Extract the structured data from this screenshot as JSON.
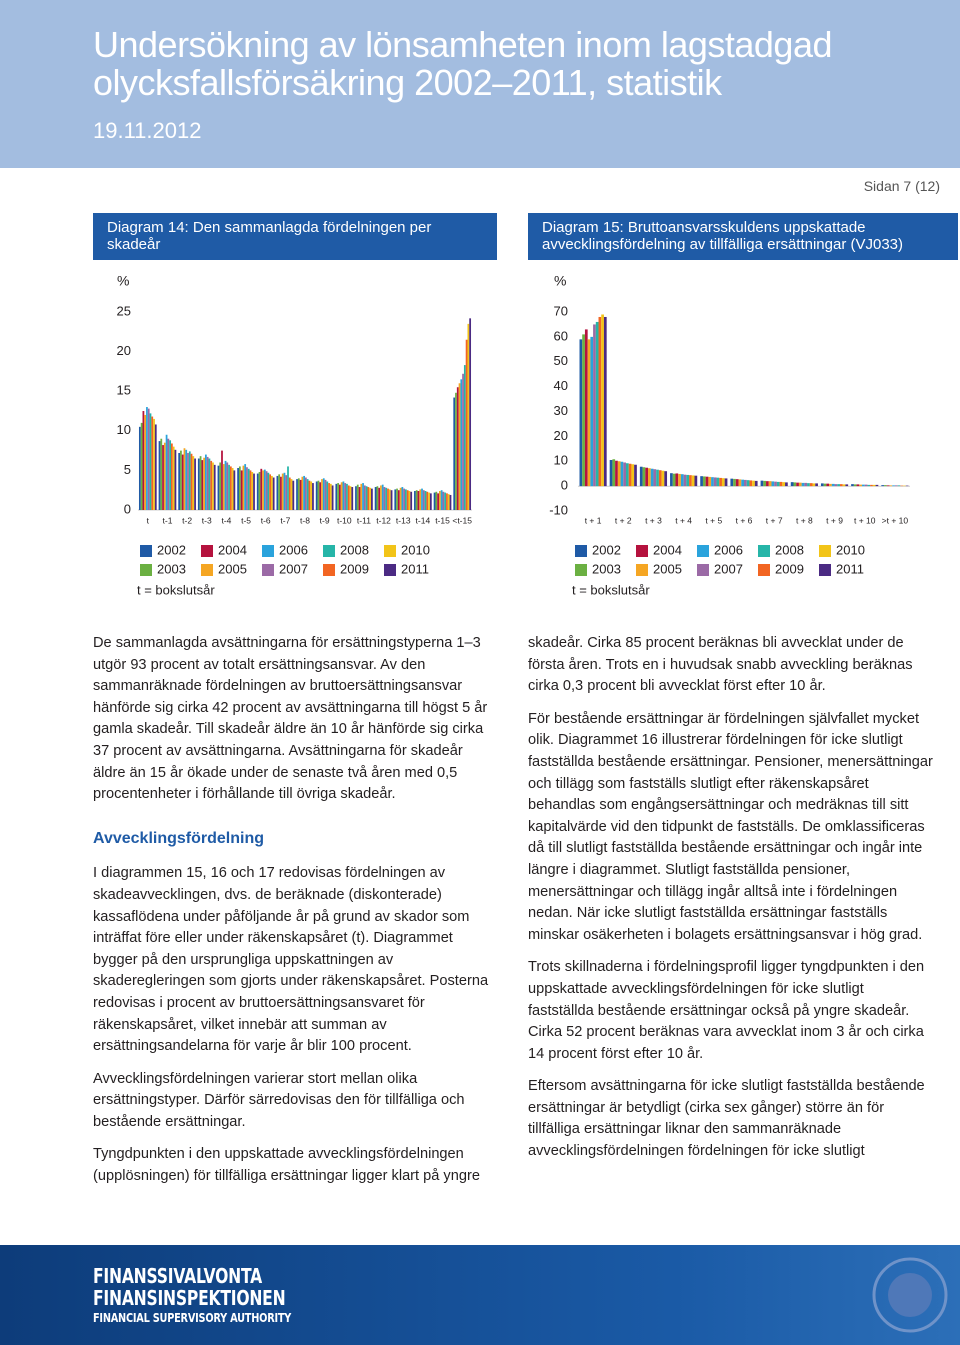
{
  "header": {
    "title": "Undersökning av lönsamheten inom lagstadgad olycksfallsförsäkring 2002–2011, statistik",
    "date": "19.11.2012",
    "page": "Sidan 7 (12)"
  },
  "chart_data": [
    {
      "type": "bar",
      "title": "Diagram 14: Den sammanlagda fördelningen per skadeår",
      "ylabel": "%",
      "note": "t = bokslutsår",
      "categories": [
        "t",
        "t-1",
        "t-2",
        "t-3",
        "t-4",
        "t-5",
        "t-6",
        "t-7",
        "t-8",
        "t-9",
        "t-10",
        "t-11",
        "t-12",
        "t-13",
        "t-14",
        "t-15",
        "<t-15"
      ],
      "ylim": [
        0,
        25
      ],
      "yticks": [
        0,
        5,
        10,
        15,
        20,
        25
      ],
      "series": [
        {
          "name": "2002",
          "color": "#1f5aa6",
          "values": [
            10.5,
            8.7,
            7.2,
            6.5,
            5.6,
            5.3,
            4.6,
            4.3,
            3.9,
            3.6,
            3.3,
            3.0,
            2.9,
            2.6,
            2.4,
            2.2,
            14.2
          ]
        },
        {
          "name": "2003",
          "color": "#6bb042",
          "values": [
            11.0,
            9.0,
            7.5,
            6.8,
            6.0,
            5.5,
            4.8,
            4.5,
            4.0,
            3.7,
            3.4,
            3.2,
            3.0,
            2.7,
            2.5,
            2.3,
            14.8
          ]
        },
        {
          "name": "2004",
          "color": "#b5123e",
          "values": [
            12.5,
            8.2,
            7.0,
            6.3,
            7.5,
            5.0,
            5.2,
            4.2,
            3.8,
            3.5,
            3.2,
            2.9,
            2.8,
            2.5,
            2.4,
            2.1,
            15.5
          ]
        },
        {
          "name": "2005",
          "color": "#f5a623",
          "values": [
            12.0,
            8.5,
            7.8,
            6.6,
            5.8,
            5.6,
            5.0,
            4.6,
            4.2,
            3.9,
            3.5,
            3.3,
            3.1,
            2.8,
            2.6,
            2.4,
            16.0
          ]
        },
        {
          "name": "2006",
          "color": "#2aa3dc",
          "values": [
            13.0,
            9.5,
            7.6,
            7.0,
            6.2,
            5.8,
            5.1,
            4.7,
            4.3,
            4.0,
            3.6,
            3.4,
            3.2,
            2.9,
            2.7,
            2.5,
            16.5
          ]
        },
        {
          "name": "2007",
          "color": "#9b6aa6",
          "values": [
            12.8,
            9.0,
            7.2,
            6.7,
            6.0,
            5.4,
            4.9,
            4.4,
            4.1,
            3.8,
            3.4,
            3.1,
            2.9,
            2.7,
            2.5,
            2.3,
            17.2
          ]
        },
        {
          "name": "2008",
          "color": "#26b5a8",
          "values": [
            12.2,
            8.8,
            7.4,
            6.5,
            5.7,
            5.2,
            4.7,
            5.5,
            3.9,
            3.6,
            3.3,
            3.0,
            2.8,
            2.6,
            2.4,
            2.2,
            18.3
          ]
        },
        {
          "name": "2009",
          "color": "#f26522",
          "values": [
            11.8,
            8.4,
            7.1,
            6.2,
            5.5,
            5.0,
            4.5,
            4.1,
            3.7,
            3.4,
            3.1,
            2.9,
            2.7,
            2.5,
            2.3,
            2.1,
            21.5
          ]
        },
        {
          "name": "2010",
          "color": "#f2c418",
          "values": [
            11.5,
            8.0,
            6.8,
            6.0,
            5.3,
            4.8,
            4.3,
            3.9,
            3.6,
            3.3,
            3.0,
            2.8,
            2.6,
            2.4,
            2.2,
            2.0,
            23.5
          ]
        },
        {
          "name": "2011",
          "color": "#4b2a83",
          "values": [
            10.8,
            7.6,
            6.5,
            5.7,
            5.0,
            4.6,
            4.1,
            3.7,
            3.4,
            3.1,
            2.9,
            2.7,
            2.5,
            2.3,
            2.1,
            1.9,
            24.2
          ]
        }
      ]
    },
    {
      "type": "bar",
      "title": "Diagram 15: Bruttoansvarsskuldens uppskattade avvecklingsfördelning av tillfälliga ersättningar (VJ033)",
      "ylabel": "%",
      "note": "t = bokslutsår",
      "categories": [
        "t + 1",
        "t + 2",
        "t + 3",
        "t + 4",
        "t + 5",
        "t + 6",
        "t + 7",
        "t + 8",
        "t + 9",
        "t + 10",
        ">t + 10"
      ],
      "ylim": [
        -10,
        70
      ],
      "yticks": [
        -10,
        0,
        10,
        20,
        30,
        40,
        50,
        60,
        70
      ],
      "series": [
        {
          "name": "2002",
          "color": "#1f5aa6",
          "values": [
            59,
            10.5,
            7.8,
            5.2,
            4.0,
            3.0,
            2.2,
            1.6,
            1.1,
            0.8,
            0.4
          ]
        },
        {
          "name": "2003",
          "color": "#6bb042",
          "values": [
            61,
            10.8,
            7.6,
            5.0,
            3.9,
            2.9,
            2.1,
            1.5,
            1.0,
            0.7,
            0.4
          ]
        },
        {
          "name": "2004",
          "color": "#b5123e",
          "values": [
            63,
            10.2,
            7.4,
            5.1,
            3.8,
            2.8,
            2.0,
            1.4,
            1.0,
            0.7,
            0.3
          ]
        },
        {
          "name": "2005",
          "color": "#f5a623",
          "values": [
            59,
            10.0,
            7.2,
            4.9,
            3.7,
            2.7,
            2.0,
            1.4,
            0.9,
            0.6,
            0.3
          ]
        },
        {
          "name": "2006",
          "color": "#2aa3dc",
          "values": [
            60,
            9.8,
            7.0,
            4.8,
            3.6,
            2.6,
            1.9,
            1.3,
            0.9,
            0.6,
            0.3
          ]
        },
        {
          "name": "2007",
          "color": "#9b6aa6",
          "values": [
            65,
            9.5,
            6.8,
            4.6,
            3.5,
            2.5,
            1.8,
            1.3,
            0.8,
            0.6,
            0.3
          ]
        },
        {
          "name": "2008",
          "color": "#26b5a8",
          "values": [
            66,
            9.2,
            6.6,
            4.5,
            3.4,
            2.4,
            1.7,
            1.2,
            0.8,
            0.5,
            0.3
          ]
        },
        {
          "name": "2009",
          "color": "#f26522",
          "values": [
            68,
            9.0,
            6.4,
            4.4,
            3.3,
            2.3,
            1.7,
            1.2,
            0.8,
            0.5,
            0.2
          ]
        },
        {
          "name": "2010",
          "color": "#f2c418",
          "values": [
            69,
            8.8,
            6.2,
            4.3,
            3.2,
            2.2,
            1.6,
            1.1,
            0.7,
            0.5,
            0.2
          ]
        },
        {
          "name": "2011",
          "color": "#4b2a83",
          "values": [
            68,
            8.6,
            6.0,
            4.2,
            3.1,
            2.1,
            1.5,
            1.1,
            0.7,
            0.5,
            0.2
          ]
        }
      ]
    }
  ],
  "body": {
    "column1": [
      "De sammanlagda avsättningarna för ersättningstyperna 1–3 utgör 93 procent av totalt ersättningsansvar. Av den sammanräknade fördelningen av bruttoersättningsansvar hänförde sig cirka 42 procent av avsättningarna till högst 5 år gamla skadeår. Till skadeår äldre än 10 år hänförde sig cirka 37 procent av avsättningarna. Avsättningarna för skadeår äldre än 15 år ökade under de senaste två åren med 0,5 procentenheter i förhållande till övriga skadeår."
    ],
    "heading": "Avvecklingsfördelning",
    "column1_after": [
      "I diagrammen 15, 16 och 17 redovisas fördelningen av skadeavvecklingen, dvs. de beräknade (diskonterade) kassaflödena under påföljande år på grund av skador som inträffat före eller under räkenskapsåret (t). Diagrammet bygger på den ursprungliga uppskattningen av skaderegleringen som gjorts under räkenskapsåret. Posterna redovisas i procent av bruttoersättningsansvaret för räkenskapsåret, vilket innebär att summan av ersättningsandelarna för varje år blir 100 procent.",
      "Avvecklingsfördelningen varierar stort mellan olika ersättningstyper. Därför särredovisas den för tillfälliga och bestående ersättningar.",
      "Tyngdpunkten i den uppskattade avvecklingsfördelningen (upplösningen) för tillfälliga ersättningar ligger klart på yngre"
    ],
    "column2": [
      "skadeår. Cirka 85 procent beräknas bli avvecklat under de första åren. Trots en i huvudsak snabb avveckling beräknas cirka 0,3 procent bli avvecklat först efter 10 år.",
      "För bestående ersättningar är fördelningen självfallet mycket olik. Diagrammet 16 illustrerar fördelningen för icke slutligt fastställda bestående ersättningar. Pensioner, menersättningar och tillägg som fastställs slutligt efter räkenskapsåret behandlas som engångsersättningar och medräknas till sitt kapitalvärde vid den tidpunkt de fastställs. De omklassificeras då till slutligt fastställda bestående ersättningar och ingår inte längre i diagrammet. Slutligt fastställda pensioner, menersättningar och tillägg ingår alltså inte i fördelningen nedan. När icke slutligt fastställda ersättningar fastställs minskar osäkerheten i bolagets ersättningsansvar i hög grad.",
      "Trots skillnaderna i fördelningsprofil ligger tyngdpunkten i den uppskattade avvecklingsfördelningen för icke slutligt fastställda bestående ersättningar också på yngre skadeår. Cirka 52 procent beräknas vara avvecklat inom 3 år och cirka 14 procent först efter 10 år.",
      "Eftersom avsättningarna för icke slutligt fastställda bestående ersättningar är betydligt (cirka sex gånger) större än för tillfälliga ersättningar liknar den sammanräknade avvecklingsfördelningen fördelningen för icke slutligt"
    ]
  },
  "footer": {
    "logo": [
      "FINANSSIVALVONTA",
      "FINANSINSPEKTIONEN",
      "FINANCIAL SUPERVISORY AUTHORITY"
    ]
  }
}
